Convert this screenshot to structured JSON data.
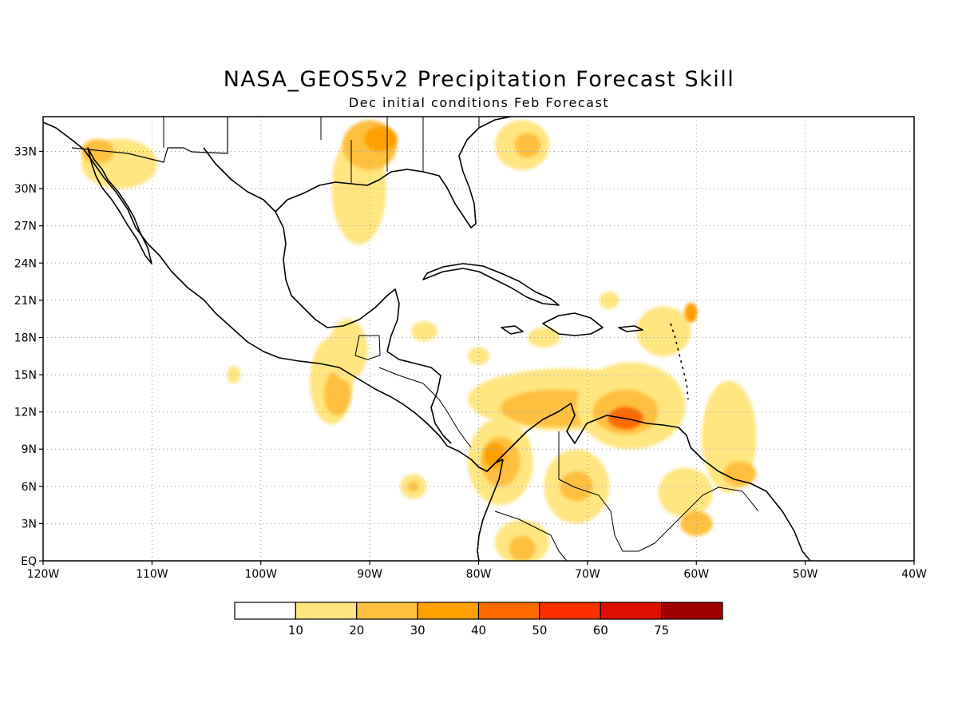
{
  "title": "NASA_GEOS5v2 Precipitation Forecast Skill",
  "subtitle": "Dec initial conditions  Feb Forecast",
  "map": {
    "lon_range": [
      -120,
      -40
    ],
    "lat_range": [
      0,
      35
    ],
    "lon_ticks": [
      "120W",
      "110W",
      "100W",
      "90W",
      "80W",
      "70W",
      "60W",
      "50W",
      "40W"
    ],
    "lat_ticks": [
      "EQ",
      "3N",
      "6N",
      "9N",
      "12N",
      "15N",
      "18N",
      "21N",
      "24N",
      "27N",
      "30N",
      "33N"
    ],
    "grid": true,
    "skill_regions": [
      {
        "level": 1,
        "lon": -93.5,
        "lat": 14.5,
        "rlon": 2.0,
        "rlat": 3.5
      },
      {
        "level": 2,
        "lon": -93.0,
        "lat": 13.5,
        "rlon": 1.2,
        "rlat": 1.8
      },
      {
        "level": 1,
        "lon": -92.0,
        "lat": 17.0,
        "rlon": 1.8,
        "rlat": 2.5
      },
      {
        "level": 1,
        "lon": -91.0,
        "lat": 30.0,
        "rlon": 2.5,
        "rlat": 4.5
      },
      {
        "level": 2,
        "lon": -90.0,
        "lat": 33.5,
        "rlon": 2.5,
        "rlat": 2.0
      },
      {
        "level": 3,
        "lon": -89.0,
        "lat": 34.0,
        "rlon": 1.5,
        "rlat": 1.0
      },
      {
        "level": 1,
        "lon": -113.0,
        "lat": 32.0,
        "rlon": 3.5,
        "rlat": 2.0
      },
      {
        "level": 2,
        "lon": -115.0,
        "lat": 33.0,
        "rlon": 1.5,
        "rlat": 1.0
      },
      {
        "level": 1,
        "lon": -76.0,
        "lat": 33.5,
        "rlon": 2.5,
        "rlat": 2.0
      },
      {
        "level": 2,
        "lon": -75.5,
        "lat": 33.5,
        "rlon": 1.2,
        "rlat": 1.0
      },
      {
        "level": 1,
        "lon": -72.0,
        "lat": 13.0,
        "rlon": 9.0,
        "rlat": 2.5
      },
      {
        "level": 2,
        "lon": -73.0,
        "lat": 12.3,
        "rlon": 5.0,
        "rlat": 1.5
      },
      {
        "level": 1,
        "lon": -66.0,
        "lat": 12.5,
        "rlon": 5.0,
        "rlat": 3.5
      },
      {
        "level": 2,
        "lon": -66.5,
        "lat": 12.0,
        "rlon": 3.0,
        "rlat": 1.8
      },
      {
        "level": 4,
        "lon": -66.5,
        "lat": 11.5,
        "rlon": 1.6,
        "rlat": 0.9
      },
      {
        "level": 1,
        "lon": -78.0,
        "lat": 8.0,
        "rlon": 3.0,
        "rlat": 3.5
      },
      {
        "level": 2,
        "lon": -78.0,
        "lat": 8.0,
        "rlon": 1.8,
        "rlat": 2.0
      },
      {
        "level": 3,
        "lon": -78.5,
        "lat": 8.5,
        "rlon": 1.0,
        "rlat": 1.0
      },
      {
        "level": 1,
        "lon": -71.0,
        "lat": 6.0,
        "rlon": 3.0,
        "rlat": 3.0
      },
      {
        "level": 2,
        "lon": -71.0,
        "lat": 6.0,
        "rlon": 1.5,
        "rlat": 1.2
      },
      {
        "level": 1,
        "lon": -76.0,
        "lat": 1.5,
        "rlon": 2.5,
        "rlat": 1.8
      },
      {
        "level": 2,
        "lon": -76.0,
        "lat": 1.0,
        "rlon": 1.2,
        "rlat": 1.0
      },
      {
        "level": 1,
        "lon": -57.0,
        "lat": 10.0,
        "rlon": 2.5,
        "rlat": 4.5
      },
      {
        "level": 2,
        "lon": -56.0,
        "lat": 7.0,
        "rlon": 1.5,
        "rlat": 1.0
      },
      {
        "level": 1,
        "lon": -61.0,
        "lat": 5.5,
        "rlon": 2.5,
        "rlat": 2.0
      },
      {
        "level": 2,
        "lon": -60.0,
        "lat": 3.0,
        "rlon": 1.5,
        "rlat": 1.0
      },
      {
        "level": 1,
        "lon": -63.0,
        "lat": 18.5,
        "rlon": 2.5,
        "rlat": 2.0
      },
      {
        "level": 3,
        "lon": -60.5,
        "lat": 20.0,
        "rlon": 0.6,
        "rlat": 0.8
      },
      {
        "level": 1,
        "lon": -86.0,
        "lat": 6.0,
        "rlon": 1.2,
        "rlat": 1.0
      },
      {
        "level": 2,
        "lon": -86.0,
        "lat": 6.0,
        "rlon": 0.5,
        "rlat": 0.4
      },
      {
        "level": 1,
        "lon": -85.0,
        "lat": 18.5,
        "rlon": 1.2,
        "rlat": 0.8
      },
      {
        "level": 1,
        "lon": -80.0,
        "lat": 16.5,
        "rlon": 1.0,
        "rlat": 0.7
      },
      {
        "level": 1,
        "lon": -68.0,
        "lat": 21.0,
        "rlon": 0.9,
        "rlat": 0.7
      },
      {
        "level": 1,
        "lon": -102.5,
        "lat": 15.0,
        "rlon": 0.6,
        "rlat": 0.7
      },
      {
        "level": 1,
        "lon": -74.0,
        "lat": 18.0,
        "rlon": 1.5,
        "rlat": 0.8
      }
    ]
  },
  "colorbar": {
    "labels": [
      "10",
      "20",
      "30",
      "40",
      "50",
      "60",
      "75"
    ],
    "colors": [
      "#ffffff",
      "#ffe680",
      "#ffc040",
      "#ffa000",
      "#ff6a00",
      "#ff3000",
      "#dd1000",
      "#a00000"
    ]
  }
}
